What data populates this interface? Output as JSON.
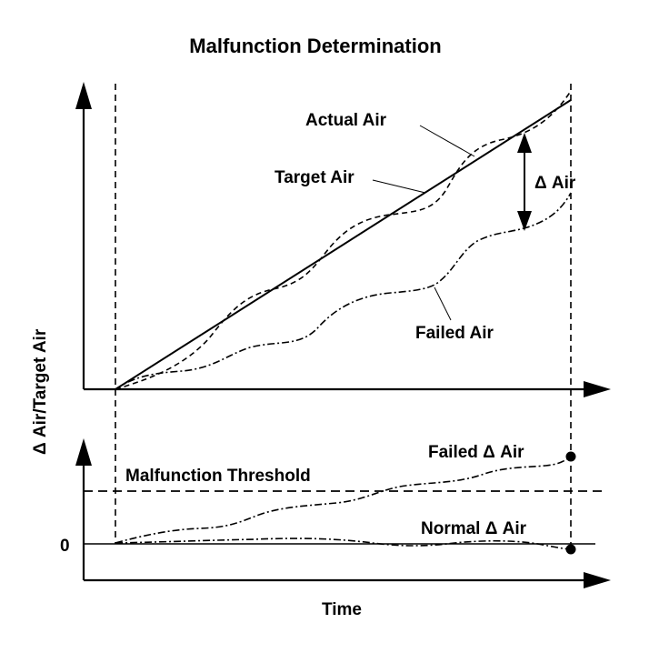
{
  "title": "Malfunction Determination",
  "y_axis_label": "Δ Air/Target Air",
  "x_axis_label": "Time",
  "upper_graph": {
    "actual_air_label": "Actual Air",
    "target_air_label": "Target Air",
    "delta_air_label": "Δ Air",
    "failed_air_label": "Failed Air"
  },
  "lower_graph": {
    "failed_delta_label": "Failed  Δ Air",
    "threshold_label": "Malfunction Threshold",
    "normal_delta_label": "Normal  Δ Air",
    "zero_tick_label": "0"
  }
}
